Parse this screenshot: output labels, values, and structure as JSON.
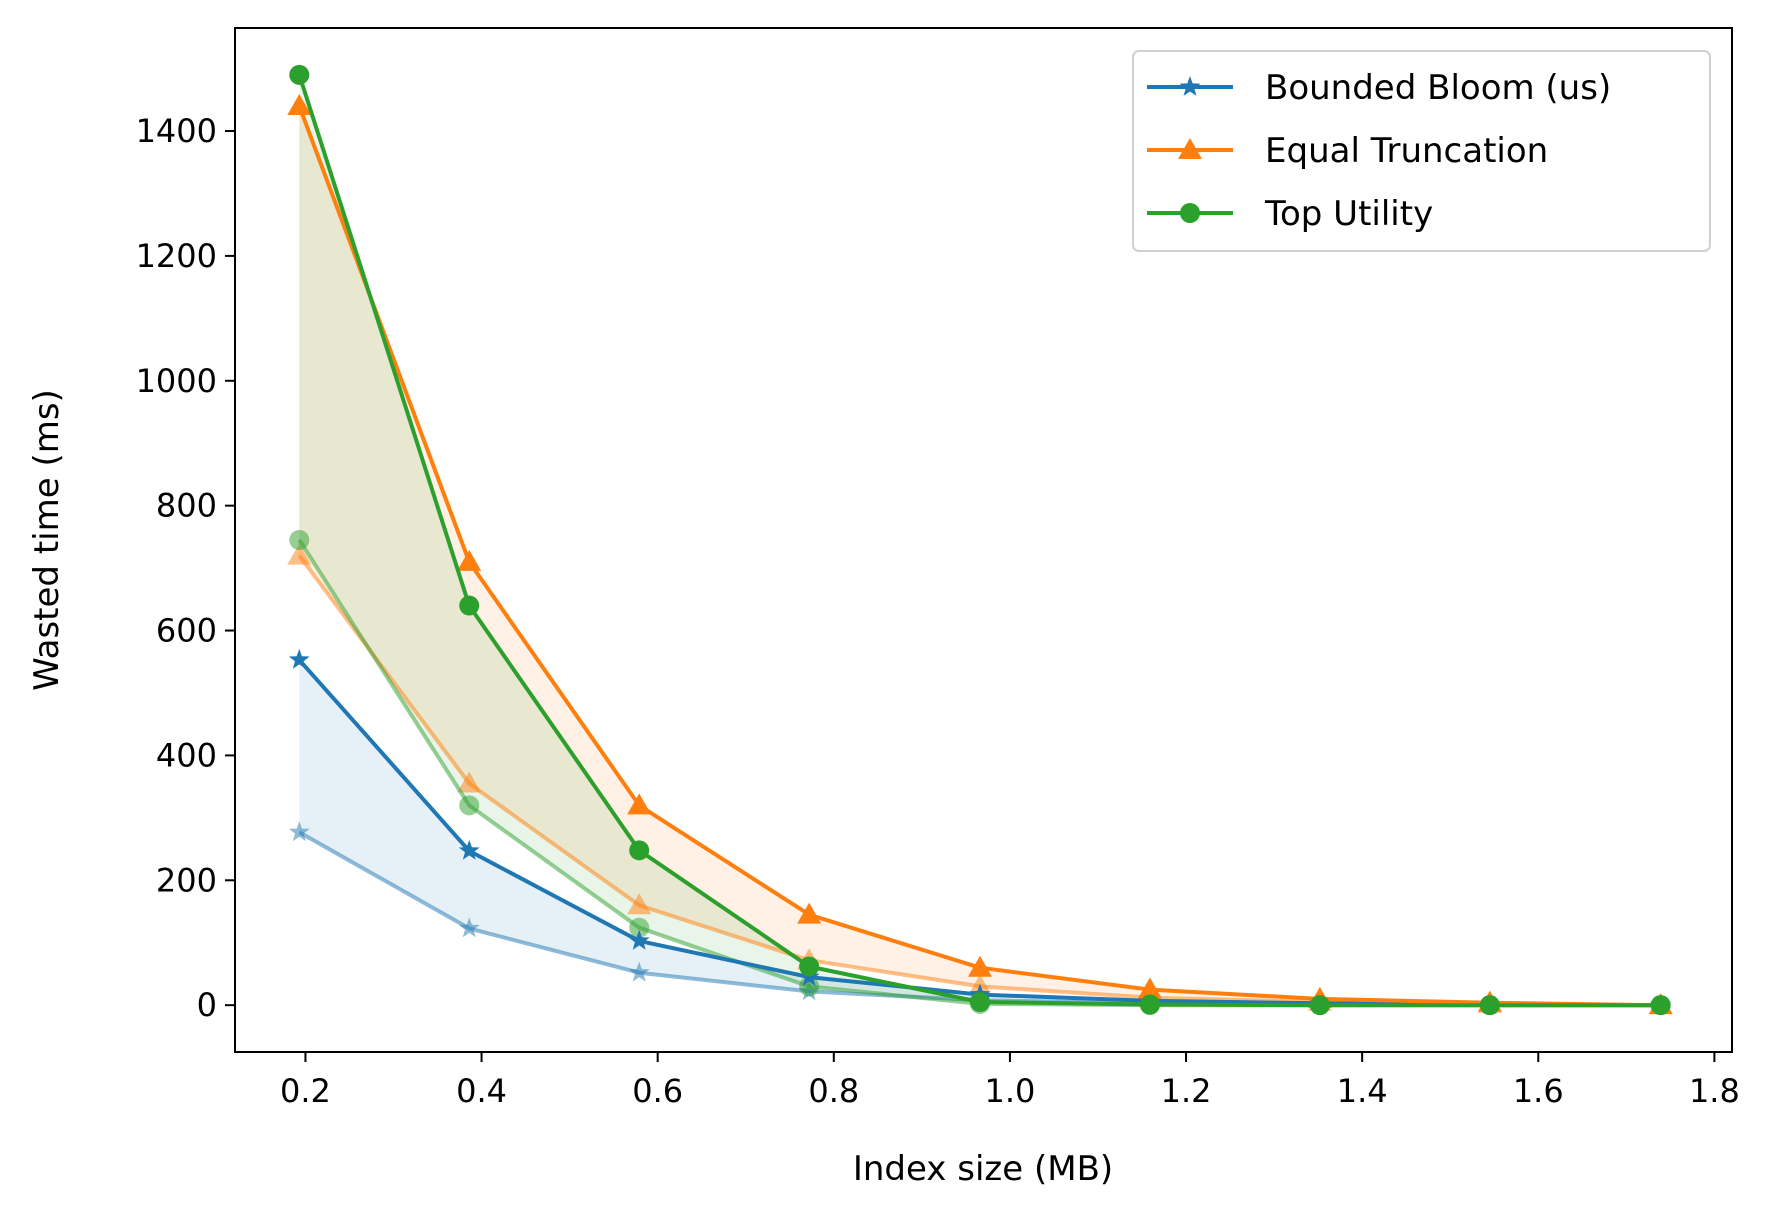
{
  "chart_data": {
    "type": "line",
    "xlabel": "Index size (MB)",
    "ylabel": "Wasted time (ms)",
    "xlim": [
      0.12,
      1.82
    ],
    "ylim": [
      -75,
      1565
    ],
    "x_ticks": [
      0.2,
      0.4,
      0.6,
      0.8,
      1.0,
      1.2,
      1.4,
      1.6,
      1.8
    ],
    "x_tick_labels": [
      "0.2",
      "0.4",
      "0.6",
      "0.8",
      "1.0",
      "1.2",
      "1.4",
      "1.6",
      "1.8"
    ],
    "y_ticks": [
      0,
      200,
      400,
      600,
      800,
      1000,
      1200,
      1400
    ],
    "y_tick_labels": [
      "0",
      "200",
      "400",
      "600",
      "800",
      "1000",
      "1200",
      "1400"
    ],
    "grid": false,
    "legend_position": "top-right",
    "x": [
      0.193,
      0.386,
      0.579,
      0.772,
      0.966,
      1.159,
      1.352,
      1.545,
      1.739
    ],
    "series": [
      {
        "name": "Bounded Bloom (us)",
        "color": "#1f77b4",
        "marker": "star",
        "upper": [
          553,
          247,
          103,
          45,
          17,
          7,
          3,
          1,
          0
        ],
        "lower": [
          277,
          123,
          52,
          22,
          8,
          3,
          1,
          0,
          0
        ]
      },
      {
        "name": "Equal Truncation",
        "color": "#ff7f0e",
        "marker": "triangle",
        "upper": [
          1440,
          710,
          320,
          145,
          60,
          25,
          10,
          4,
          0
        ],
        "lower": [
          720,
          355,
          160,
          72,
          30,
          12,
          5,
          2,
          0
        ]
      },
      {
        "name": "Top Utility",
        "color": "#2ca02c",
        "marker": "circle",
        "upper": [
          1490,
          640,
          248,
          62,
          5,
          1,
          0,
          0,
          0
        ],
        "lower": [
          745,
          320,
          124,
          30,
          2,
          0,
          0,
          0,
          0
        ]
      }
    ]
  }
}
